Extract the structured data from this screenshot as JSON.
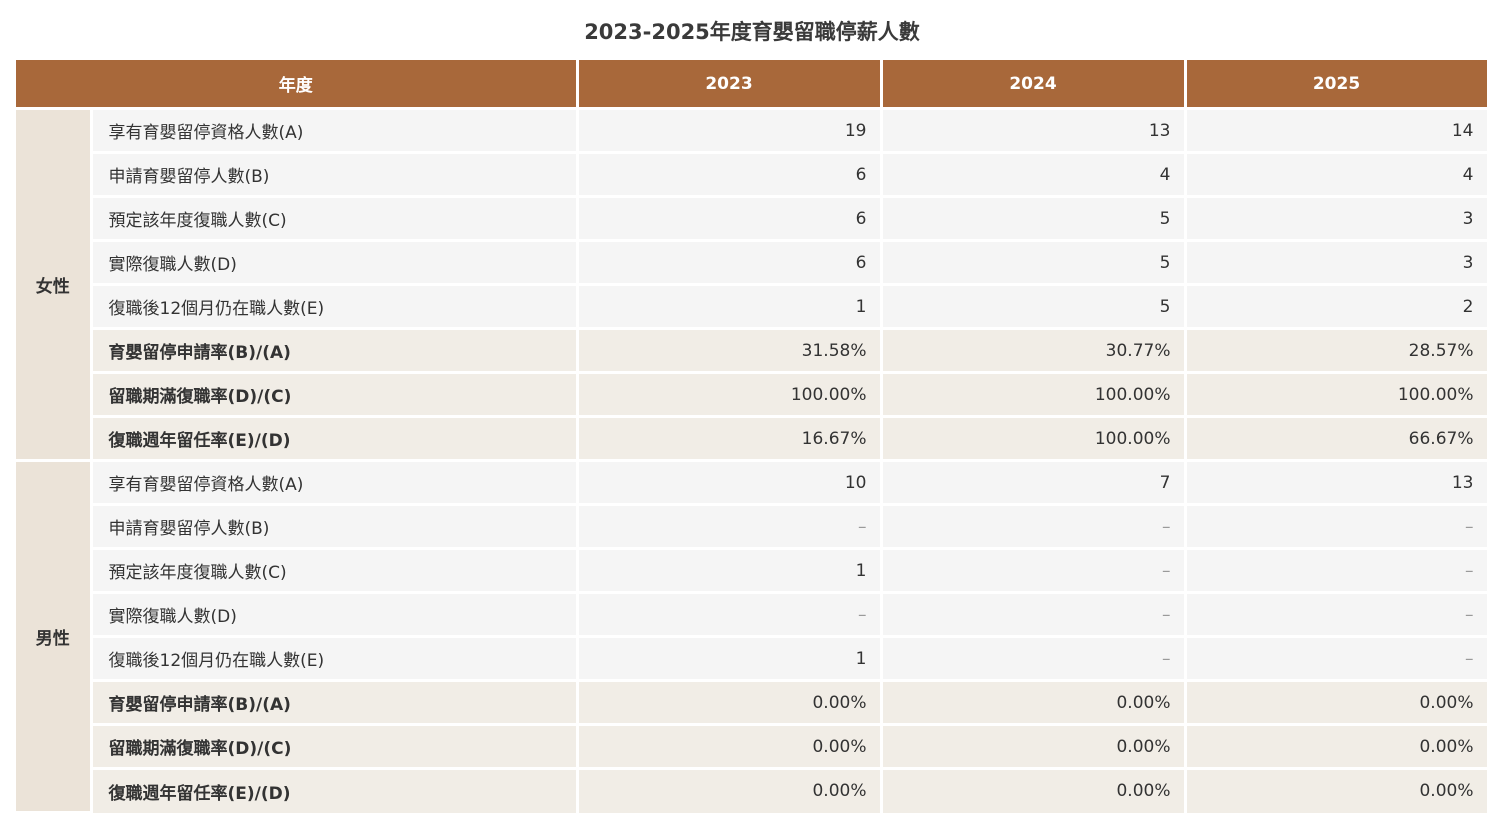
{
  "title": "2023-2025年度育嬰留職停薪人數",
  "header": {
    "year_label": "年度",
    "years": [
      "2023",
      "2024",
      "2025"
    ]
  },
  "groups": [
    {
      "gender": "女性",
      "rows": [
        {
          "label": "享有育嬰留停資格人數(A)",
          "values": [
            "19",
            "13",
            "14"
          ]
        },
        {
          "label": "申請育嬰留停人數(B)",
          "values": [
            "6",
            "4",
            "4"
          ]
        },
        {
          "label": "預定該年度復職人數(C)",
          "values": [
            "6",
            "5",
            "3"
          ]
        },
        {
          "label": "實際復職人數(D)",
          "values": [
            "6",
            "5",
            "3"
          ]
        },
        {
          "label": "復職後12個月仍在職人數(E)",
          "values": [
            "1",
            "5",
            "2"
          ]
        },
        {
          "label": "育嬰留停申請率(B)/(A)",
          "values": [
            "31.58%",
            "30.77%",
            "28.57%"
          ]
        },
        {
          "label": "留職期滿復職率(D)/(C)",
          "values": [
            "100.00%",
            "100.00%",
            "100.00%"
          ]
        },
        {
          "label": "復職週年留任率(E)/(D)",
          "values": [
            "16.67%",
            "100.00%",
            "66.67%"
          ]
        }
      ]
    },
    {
      "gender": "男性",
      "rows": [
        {
          "label": "享有育嬰留停資格人數(A)",
          "values": [
            "10",
            "7",
            "13"
          ]
        },
        {
          "label": "申請育嬰留停人數(B)",
          "values": [
            "–",
            "–",
            "–"
          ]
        },
        {
          "label": "預定該年度復職人數(C)",
          "values": [
            "1",
            "–",
            "–"
          ]
        },
        {
          "label": "實際復職人數(D)",
          "values": [
            "–",
            "–",
            "–"
          ]
        },
        {
          "label": "復職後12個月仍在職人數(E)",
          "values": [
            "1",
            "–",
            "–"
          ]
        },
        {
          "label": "育嬰留停申請率(B)/(A)",
          "values": [
            "0.00%",
            "0.00%",
            "0.00%"
          ]
        },
        {
          "label": "留職期滿復職率(D)/(C)",
          "values": [
            "0.00%",
            "0.00%",
            "0.00%"
          ]
        },
        {
          "label": "復職週年留任率(E)/(D)",
          "values": [
            "0.00%",
            "0.00%",
            "0.00%"
          ]
        }
      ]
    }
  ]
}
